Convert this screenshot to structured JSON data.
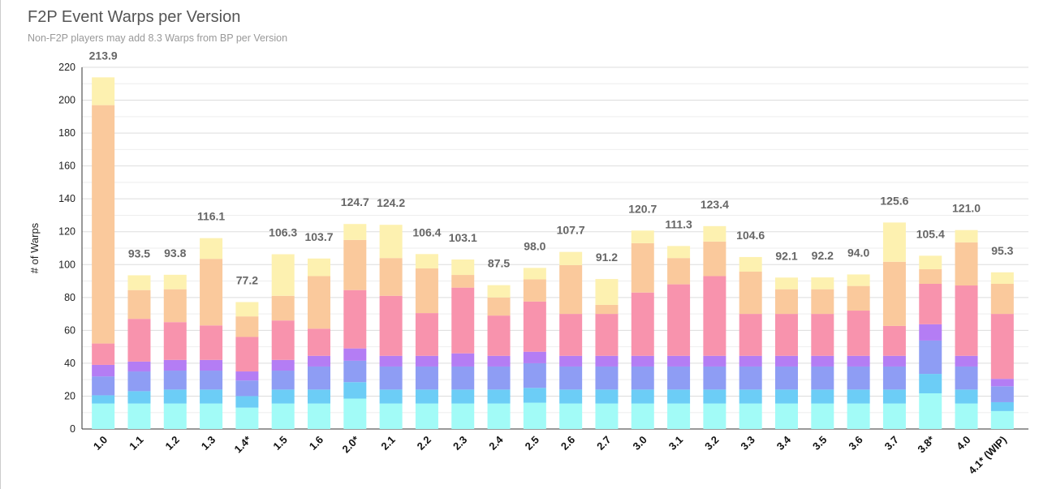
{
  "chart_data": {
    "type": "bar",
    "stacked": true,
    "title": "F2P Event Warps per Version",
    "subtitle": "Non-F2P players may add 8.3 Warps from BP per Version",
    "xlabel": "",
    "ylabel": "# of Warps",
    "ylim": [
      0,
      220
    ],
    "yticks": [
      0,
      20,
      40,
      60,
      80,
      100,
      120,
      140,
      160,
      180,
      200,
      220
    ],
    "grid": true,
    "legend": "none",
    "categories": [
      "1.0",
      "1.1",
      "1.2",
      "1.3",
      "1.4*",
      "1.5",
      "1.6",
      "2.0*",
      "2.1",
      "2.2",
      "2.3",
      "2.4",
      "2.5",
      "2.6",
      "2.7",
      "3.0",
      "3.1",
      "3.2",
      "3.3",
      "3.4",
      "3.5",
      "3.6",
      "3.7",
      "3.8*",
      "4.0",
      "4.1* (WIP)"
    ],
    "totals": [
      "213.9",
      "93.5",
      "93.8",
      "116.1",
      "77.2",
      "106.3",
      "103.7",
      "124.7",
      "124.2",
      "106.4",
      "103.1",
      "87.5",
      "98.0",
      "107.7",
      "91.2",
      "120.7",
      "111.3",
      "123.4",
      "104.6",
      "92.1",
      "92.2",
      "94.0",
      "125.6",
      "105.4",
      "121.0",
      "95.3"
    ],
    "series": [
      {
        "name": "segment-1",
        "color": "#a2fbf7",
        "values": [
          15.5,
          15.5,
          15.5,
          15.5,
          13,
          15.5,
          15.5,
          18.5,
          15.5,
          15.5,
          15.5,
          15.5,
          16,
          15.5,
          15.5,
          15.5,
          15.5,
          15.5,
          15.5,
          15.5,
          15.5,
          15.5,
          15.5,
          21.7,
          15.5,
          10.9
        ]
      },
      {
        "name": "segment-2",
        "color": "#6ccdf6",
        "values": [
          5,
          7.5,
          8.5,
          8.5,
          7,
          8.5,
          8.5,
          10,
          8.5,
          8.5,
          8.5,
          8.5,
          9,
          8.5,
          8.5,
          8.5,
          8.5,
          8.5,
          8.5,
          8.5,
          8.5,
          8.5,
          8.5,
          11.8,
          8.5,
          5.4
        ]
      },
      {
        "name": "segment-3",
        "color": "#8e9df4",
        "values": [
          11.5,
          12,
          11.5,
          11.5,
          9.5,
          11.5,
          14,
          13,
          14,
          14,
          14,
          14,
          15,
          14,
          14,
          14,
          14,
          14,
          14,
          14,
          14,
          14,
          14,
          20.3,
          14,
          9.7
        ]
      },
      {
        "name": "segment-4",
        "color": "#b47df4",
        "values": [
          7,
          6,
          6.5,
          6.5,
          5.5,
          6.5,
          6.5,
          7.5,
          6.5,
          6.5,
          8,
          6.5,
          7,
          6.5,
          6.5,
          6.5,
          6.5,
          6.5,
          6.5,
          6.5,
          6.5,
          6.5,
          6.5,
          9.9,
          6.5,
          4.5
        ]
      },
      {
        "name": "segment-5",
        "color": "#f893ad",
        "values": [
          13,
          26,
          23,
          21,
          21,
          24,
          16.5,
          35.5,
          36.5,
          26,
          40,
          24.5,
          30.5,
          25.5,
          25.5,
          38.5,
          43.5,
          48.5,
          25.5,
          25.5,
          25.5,
          27.5,
          18.2,
          24.6,
          42.8,
          39.5
        ]
      },
      {
        "name": "segment-6",
        "color": "#fac99c",
        "values": [
          145,
          17.5,
          20,
          40.5,
          12.5,
          15,
          32,
          30.5,
          23,
          27.2,
          7.7,
          11,
          13.5,
          29.7,
          5.5,
          30,
          16,
          21,
          25.7,
          15,
          15,
          15,
          39,
          8.9,
          26.2,
          18.3
        ]
      },
      {
        "name": "segment-7",
        "color": "#fdf1b0",
        "values": [
          16.9,
          9,
          8.8,
          12.6,
          8.7,
          25.3,
          10.7,
          9.7,
          20.2,
          8.7,
          9.4,
          7.5,
          7,
          8,
          15.7,
          7.7,
          7.3,
          9.4,
          8.9,
          7.1,
          7.2,
          7,
          23.9,
          8.2,
          7.5,
          7
        ]
      }
    ]
  }
}
